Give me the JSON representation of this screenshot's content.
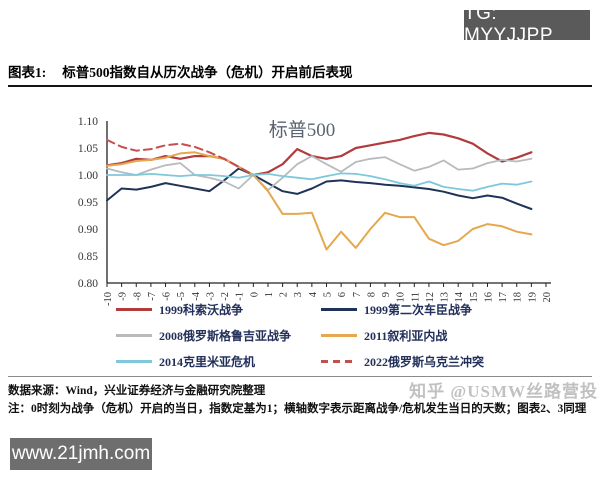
{
  "badges": {
    "tg": "TG: MYYJJPP",
    "site": "www.21jmh.com"
  },
  "header": {
    "figure_label": "图表1:",
    "title": "标普500指数自从历次战争（危机）开启前后表现"
  },
  "chart_data": {
    "type": "line",
    "title": "标普500",
    "title_color": "#5a6472",
    "xlim": [
      -10,
      20
    ],
    "ylim": [
      0.8,
      1.1
    ],
    "y_ticks": [
      "1.10",
      "1.05",
      "1.00",
      "0.95",
      "0.90",
      "0.85",
      "0.80"
    ],
    "x_ticks": [
      -10,
      -9,
      -8,
      -7,
      -6,
      -5,
      -4,
      -3,
      -2,
      -1,
      0,
      1,
      2,
      3,
      4,
      5,
      6,
      7,
      8,
      9,
      10,
      11,
      12,
      13,
      14,
      15,
      16,
      17,
      18,
      19,
      20
    ],
    "grid": false,
    "legend_position": "bottom",
    "axis_color": "#222222",
    "tick_label_color": "#333333",
    "series": [
      {
        "name": "1999科索沃战争",
        "color": "#b23b3c",
        "style": "solid",
        "width": 2.2,
        "x_start": -10,
        "values": [
          1.018,
          1.022,
          1.03,
          1.028,
          1.035,
          1.03,
          1.035,
          1.035,
          1.03,
          1.015,
          1.0,
          1.005,
          1.02,
          1.048,
          1.035,
          1.03,
          1.035,
          1.05,
          1.055,
          1.06,
          1.065,
          1.072,
          1.078,
          1.075,
          1.068,
          1.058,
          1.04,
          1.025,
          1.032,
          1.042
        ]
      },
      {
        "name": "1999第二次车臣战争",
        "color": "#1f3358",
        "style": "solid",
        "width": 2.0,
        "x_start": -10,
        "values": [
          0.953,
          0.975,
          0.973,
          0.978,
          0.985,
          0.98,
          0.975,
          0.97,
          0.99,
          1.012,
          1.0,
          0.985,
          0.97,
          0.965,
          0.975,
          0.988,
          0.99,
          0.987,
          0.985,
          0.982,
          0.98,
          0.977,
          0.974,
          0.969,
          0.962,
          0.957,
          0.962,
          0.958,
          0.947,
          0.937
        ]
      },
      {
        "name": "2008俄罗斯格鲁吉亚战争",
        "color": "#b8babd",
        "style": "solid",
        "width": 1.8,
        "x_start": -10,
        "values": [
          1.012,
          1.005,
          1.0,
          1.01,
          1.018,
          1.022,
          1.0,
          0.995,
          0.988,
          0.975,
          1.0,
          0.972,
          0.995,
          1.02,
          1.035,
          1.02,
          1.006,
          1.024,
          1.03,
          1.033,
          1.02,
          1.008,
          1.015,
          1.027,
          1.01,
          1.012,
          1.022,
          1.028,
          1.025,
          1.03
        ]
      },
      {
        "name": "2011叙利亚内战",
        "color": "#e5a84e",
        "style": "solid",
        "width": 2.0,
        "x_start": -10,
        "values": [
          1.017,
          1.02,
          1.026,
          1.028,
          1.032,
          1.04,
          1.042,
          1.035,
          1.03,
          1.015,
          1.0,
          0.97,
          0.928,
          0.928,
          0.93,
          0.862,
          0.895,
          0.865,
          0.9,
          0.93,
          0.922,
          0.922,
          0.882,
          0.87,
          0.878,
          0.9,
          0.909,
          0.905,
          0.895,
          0.89
        ]
      },
      {
        "name": "2014克里米亚危机",
        "color": "#7ec8dc",
        "style": "solid",
        "width": 1.8,
        "x_start": -10,
        "values": [
          1.0,
          1.0,
          1.0,
          1.002,
          1.0,
          0.998,
          1.0,
          1.0,
          0.998,
          0.995,
          1.0,
          1.002,
          0.998,
          0.995,
          0.992,
          0.998,
          1.003,
          1.002,
          0.998,
          0.992,
          0.985,
          0.98,
          0.988,
          0.978,
          0.974,
          0.971,
          0.978,
          0.984,
          0.982,
          0.988
        ]
      },
      {
        "name": "2022俄罗斯乌克兰冲突",
        "color": "#c4504e",
        "style": "dashed",
        "width": 2.0,
        "x_start": -10,
        "values": [
          1.065,
          1.052,
          1.045,
          1.048,
          1.055,
          1.058,
          1.052,
          1.042,
          1.03,
          1.015,
          1.0
        ]
      }
    ]
  },
  "footer": {
    "source": "数据来源：Wind，兴业证券经济与金融研究院整理",
    "note": "注：0时刻为战争（危机）开启的当日，指数定基为1；横轴数字表示距离战争/危机发生当日的天数；图表2、3同理"
  },
  "watermark": "知乎 @USMW丝路营投"
}
